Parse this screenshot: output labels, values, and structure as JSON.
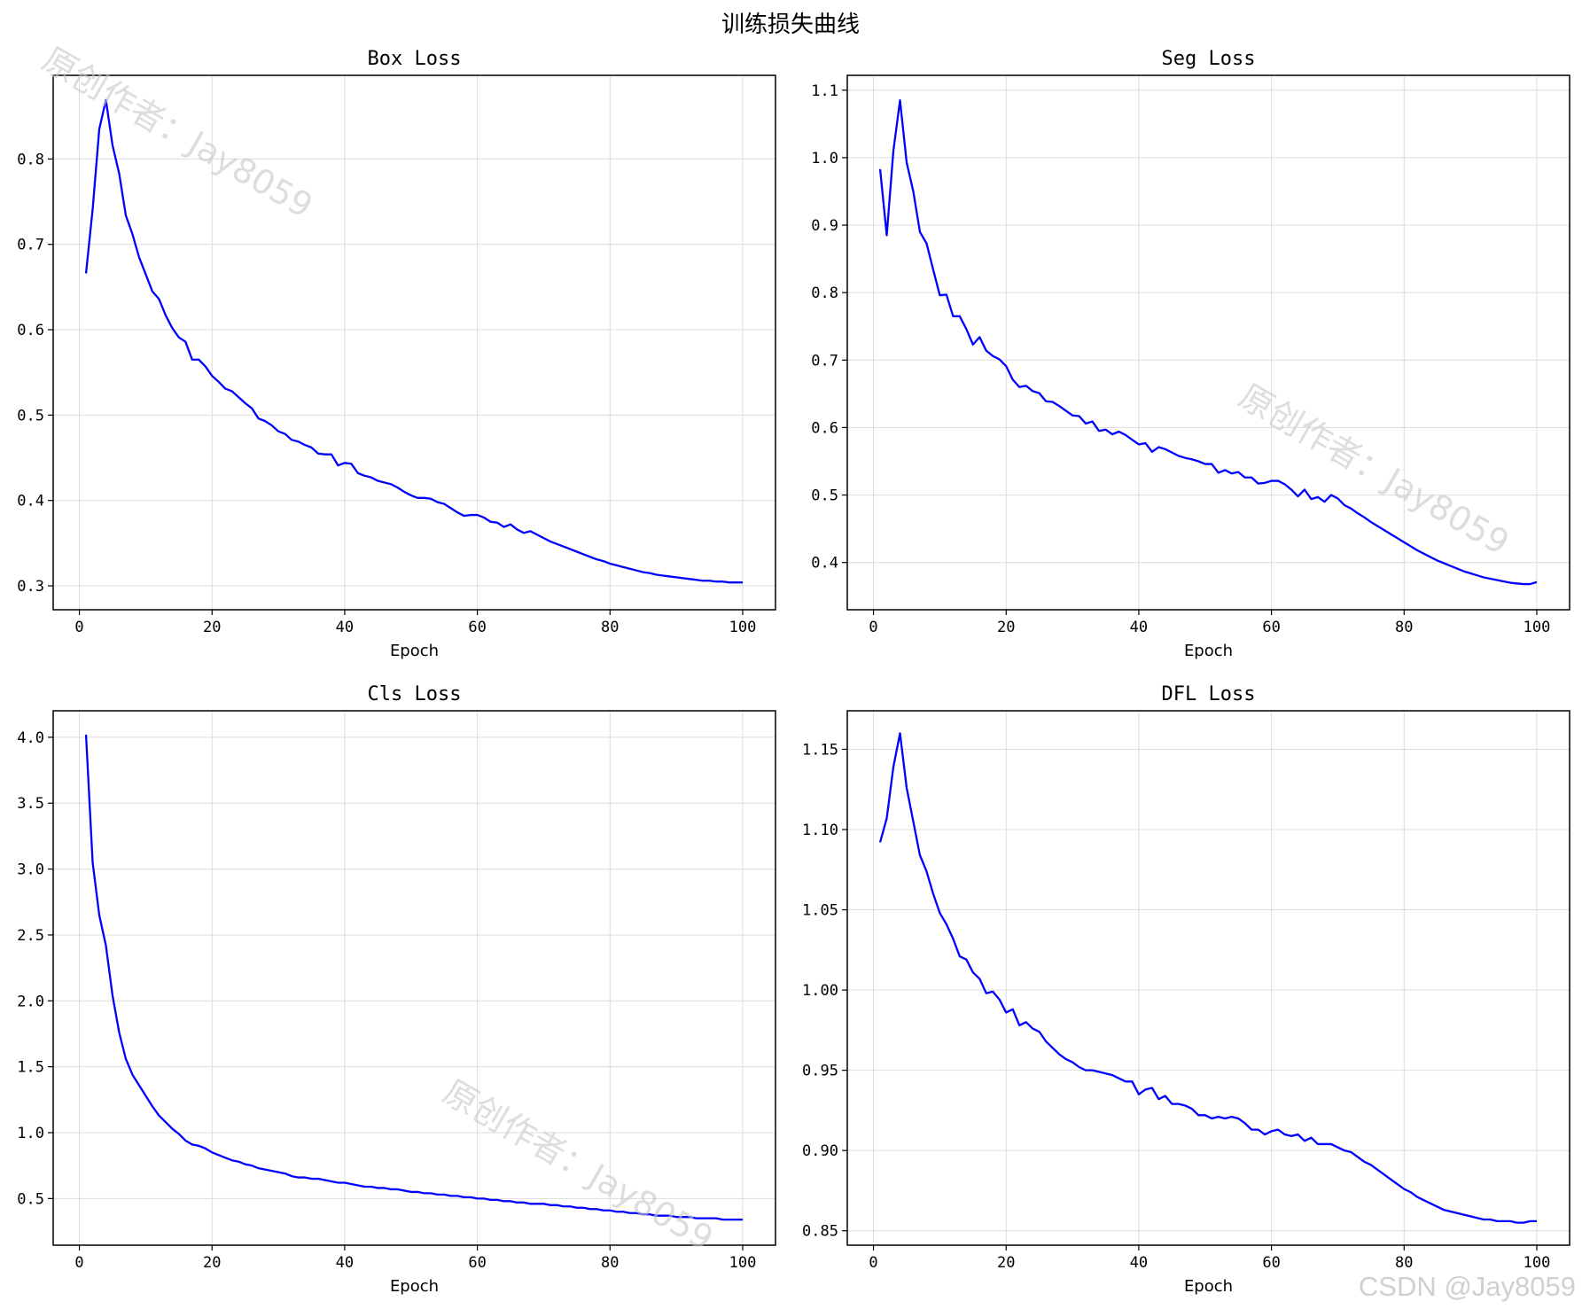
{
  "figure_title": "训练损失曲线",
  "watermarks": [
    "原创作者：Jay8059",
    "原创作者：Jay8059",
    "原创作者：Jay8059"
  ],
  "footer_watermark": "CSDN @Jay8059",
  "line_color": "#0000ff",
  "chart_data": [
    {
      "type": "line",
      "title": "Box Loss",
      "xlabel": "Epoch",
      "ylabel": "",
      "xlim": [
        -3.95,
        104.95
      ],
      "ylim": [
        0.272,
        0.898
      ],
      "xticks": [
        0,
        20,
        40,
        60,
        80,
        100
      ],
      "yticks": [
        0.3,
        0.4,
        0.5,
        0.6,
        0.7,
        0.8
      ],
      "ytick_labels": [
        "0.3",
        "0.4",
        "0.5",
        "0.6",
        "0.7",
        "0.8"
      ],
      "grid": true,
      "x": [
        1,
        2,
        3,
        4,
        5,
        6,
        7,
        8,
        9,
        10,
        11,
        12,
        13,
        14,
        15,
        16,
        17,
        18,
        19,
        20,
        21,
        22,
        23,
        24,
        25,
        26,
        27,
        28,
        29,
        30,
        31,
        32,
        33,
        34,
        35,
        36,
        37,
        38,
        39,
        40,
        41,
        42,
        43,
        44,
        45,
        46,
        47,
        48,
        49,
        50,
        51,
        52,
        53,
        54,
        55,
        56,
        57,
        58,
        59,
        60,
        61,
        62,
        63,
        64,
        65,
        66,
        67,
        68,
        69,
        70,
        71,
        72,
        73,
        74,
        75,
        76,
        77,
        78,
        79,
        80,
        81,
        82,
        83,
        84,
        85,
        86,
        87,
        88,
        89,
        90,
        91,
        92,
        93,
        94,
        95,
        96,
        97,
        98,
        99,
        100
      ],
      "y": [
        0.666,
        0.741,
        0.835,
        0.869,
        0.816,
        0.783,
        0.734,
        0.712,
        0.685,
        0.665,
        0.645,
        0.636,
        0.617,
        0.602,
        0.591,
        0.586,
        0.565,
        0.565,
        0.557,
        0.546,
        0.539,
        0.531,
        0.528,
        0.521,
        0.514,
        0.508,
        0.496,
        0.493,
        0.488,
        0.481,
        0.478,
        0.471,
        0.469,
        0.465,
        0.462,
        0.455,
        0.454,
        0.454,
        0.441,
        0.444,
        0.443,
        0.432,
        0.429,
        0.427,
        0.423,
        0.421,
        0.419,
        0.415,
        0.41,
        0.406,
        0.403,
        0.403,
        0.402,
        0.398,
        0.396,
        0.391,
        0.386,
        0.382,
        0.383,
        0.383,
        0.38,
        0.375,
        0.374,
        0.369,
        0.372,
        0.366,
        0.362,
        0.364,
        0.36,
        0.356,
        0.352,
        0.349,
        0.346,
        0.343,
        0.34,
        0.337,
        0.334,
        0.331,
        0.329,
        0.326,
        0.324,
        0.322,
        0.32,
        0.318,
        0.316,
        0.315,
        0.313,
        0.312,
        0.311,
        0.31,
        0.309,
        0.308,
        0.307,
        0.306,
        0.306,
        0.305,
        0.305,
        0.304,
        0.304,
        0.304
      ]
    },
    {
      "type": "line",
      "title": "Seg Loss",
      "xlabel": "Epoch",
      "ylabel": "",
      "xlim": [
        -3.95,
        104.95
      ],
      "ylim": [
        0.33,
        1.122
      ],
      "xticks": [
        0,
        20,
        40,
        60,
        80,
        100
      ],
      "yticks": [
        0.4,
        0.5,
        0.6,
        0.7,
        0.8,
        0.9,
        1.0,
        1.1
      ],
      "ytick_labels": [
        "0.4",
        "0.5",
        "0.6",
        "0.7",
        "0.8",
        "0.9",
        "1.0",
        "1.1"
      ],
      "grid": true,
      "x": [
        1,
        2,
        3,
        4,
        5,
        6,
        7,
        8,
        9,
        10,
        11,
        12,
        13,
        14,
        15,
        16,
        17,
        18,
        19,
        20,
        21,
        22,
        23,
        24,
        25,
        26,
        27,
        28,
        29,
        30,
        31,
        32,
        33,
        34,
        35,
        36,
        37,
        38,
        39,
        40,
        41,
        42,
        43,
        44,
        45,
        46,
        47,
        48,
        49,
        50,
        51,
        52,
        53,
        54,
        55,
        56,
        57,
        58,
        59,
        60,
        61,
        62,
        63,
        64,
        65,
        66,
        67,
        68,
        69,
        70,
        71,
        72,
        73,
        74,
        75,
        76,
        77,
        78,
        79,
        80,
        81,
        82,
        83,
        84,
        85,
        86,
        87,
        88,
        89,
        90,
        91,
        92,
        93,
        94,
        95,
        96,
        97,
        98,
        99,
        100
      ],
      "y": [
        0.983,
        0.885,
        1.01,
        1.085,
        0.993,
        0.95,
        0.89,
        0.873,
        0.834,
        0.796,
        0.797,
        0.765,
        0.765,
        0.746,
        0.723,
        0.734,
        0.714,
        0.706,
        0.701,
        0.691,
        0.671,
        0.66,
        0.662,
        0.654,
        0.651,
        0.639,
        0.638,
        0.632,
        0.625,
        0.618,
        0.617,
        0.606,
        0.609,
        0.595,
        0.597,
        0.59,
        0.594,
        0.589,
        0.582,
        0.575,
        0.577,
        0.564,
        0.571,
        0.568,
        0.563,
        0.558,
        0.555,
        0.553,
        0.55,
        0.546,
        0.546,
        0.533,
        0.537,
        0.532,
        0.534,
        0.526,
        0.526,
        0.517,
        0.518,
        0.521,
        0.521,
        0.516,
        0.508,
        0.498,
        0.508,
        0.494,
        0.497,
        0.49,
        0.5,
        0.495,
        0.485,
        0.48,
        0.473,
        0.467,
        0.46,
        0.454,
        0.448,
        0.442,
        0.436,
        0.43,
        0.424,
        0.418,
        0.413,
        0.408,
        0.403,
        0.399,
        0.395,
        0.391,
        0.387,
        0.384,
        0.381,
        0.378,
        0.376,
        0.374,
        0.372,
        0.37,
        0.369,
        0.368,
        0.368,
        0.371
      ]
    },
    {
      "type": "line",
      "title": "Cls Loss",
      "xlabel": "Epoch",
      "ylabel": "",
      "xlim": [
        -3.95,
        104.95
      ],
      "ylim": [
        0.146,
        4.201
      ],
      "xticks": [
        0,
        20,
        40,
        60,
        80,
        100
      ],
      "yticks": [
        0.5,
        1.0,
        1.5,
        2.0,
        2.5,
        3.0,
        3.5,
        4.0
      ],
      "ytick_labels": [
        "0.5",
        "1.0",
        "1.5",
        "2.0",
        "2.5",
        "3.0",
        "3.5",
        "4.0"
      ],
      "grid": true,
      "x": [
        1,
        2,
        3,
        4,
        5,
        6,
        7,
        8,
        9,
        10,
        11,
        12,
        13,
        14,
        15,
        16,
        17,
        18,
        19,
        20,
        21,
        22,
        23,
        24,
        25,
        26,
        27,
        28,
        29,
        30,
        31,
        32,
        33,
        34,
        35,
        36,
        37,
        38,
        39,
        40,
        41,
        42,
        43,
        44,
        45,
        46,
        47,
        48,
        49,
        50,
        51,
        52,
        53,
        54,
        55,
        56,
        57,
        58,
        59,
        60,
        61,
        62,
        63,
        64,
        65,
        66,
        67,
        68,
        69,
        70,
        71,
        72,
        73,
        74,
        75,
        76,
        77,
        78,
        79,
        80,
        81,
        82,
        83,
        84,
        85,
        86,
        87,
        88,
        89,
        90,
        91,
        92,
        93,
        94,
        95,
        96,
        97,
        98,
        99,
        100
      ],
      "y": [
        4.02,
        3.05,
        2.65,
        2.42,
        2.04,
        1.76,
        1.56,
        1.44,
        1.36,
        1.28,
        1.2,
        1.13,
        1.08,
        1.03,
        0.99,
        0.94,
        0.91,
        0.9,
        0.88,
        0.85,
        0.83,
        0.81,
        0.79,
        0.78,
        0.76,
        0.75,
        0.73,
        0.72,
        0.71,
        0.7,
        0.69,
        0.67,
        0.66,
        0.66,
        0.65,
        0.65,
        0.64,
        0.63,
        0.62,
        0.62,
        0.61,
        0.6,
        0.59,
        0.59,
        0.58,
        0.58,
        0.57,
        0.57,
        0.56,
        0.55,
        0.55,
        0.54,
        0.54,
        0.53,
        0.53,
        0.52,
        0.52,
        0.51,
        0.51,
        0.5,
        0.5,
        0.49,
        0.49,
        0.48,
        0.48,
        0.47,
        0.47,
        0.46,
        0.46,
        0.46,
        0.45,
        0.45,
        0.44,
        0.44,
        0.43,
        0.43,
        0.42,
        0.42,
        0.41,
        0.41,
        0.4,
        0.4,
        0.39,
        0.39,
        0.38,
        0.38,
        0.37,
        0.37,
        0.37,
        0.36,
        0.36,
        0.36,
        0.35,
        0.35,
        0.35,
        0.35,
        0.34,
        0.34,
        0.34,
        0.34
      ]
    },
    {
      "type": "line",
      "title": "DFL Loss",
      "xlabel": "Epoch",
      "ylabel": "",
      "xlim": [
        -3.95,
        104.95
      ],
      "ylim": [
        0.841,
        1.174
      ],
      "xticks": [
        0,
        20,
        40,
        60,
        80,
        100
      ],
      "yticks": [
        0.85,
        0.9,
        0.95,
        1.0,
        1.05,
        1.1,
        1.15
      ],
      "ytick_labels": [
        "0.85",
        "0.90",
        "0.95",
        "1.00",
        "1.05",
        "1.10",
        "1.15"
      ],
      "grid": true,
      "x": [
        1,
        2,
        3,
        4,
        5,
        6,
        7,
        8,
        9,
        10,
        11,
        12,
        13,
        14,
        15,
        16,
        17,
        18,
        19,
        20,
        21,
        22,
        23,
        24,
        25,
        26,
        27,
        28,
        29,
        30,
        31,
        32,
        33,
        34,
        35,
        36,
        37,
        38,
        39,
        40,
        41,
        42,
        43,
        44,
        45,
        46,
        47,
        48,
        49,
        50,
        51,
        52,
        53,
        54,
        55,
        56,
        57,
        58,
        59,
        60,
        61,
        62,
        63,
        64,
        65,
        66,
        67,
        68,
        69,
        70,
        71,
        72,
        73,
        74,
        75,
        76,
        77,
        78,
        79,
        80,
        81,
        82,
        83,
        84,
        85,
        86,
        87,
        88,
        89,
        90,
        91,
        92,
        93,
        94,
        95,
        96,
        97,
        98,
        99,
        100
      ],
      "y": [
        1.092,
        1.107,
        1.139,
        1.16,
        1.126,
        1.105,
        1.084,
        1.074,
        1.06,
        1.048,
        1.041,
        1.032,
        1.021,
        1.019,
        1.011,
        1.007,
        0.998,
        0.999,
        0.994,
        0.986,
        0.988,
        0.978,
        0.98,
        0.976,
        0.974,
        0.968,
        0.964,
        0.96,
        0.957,
        0.955,
        0.952,
        0.95,
        0.95,
        0.949,
        0.948,
        0.947,
        0.945,
        0.943,
        0.943,
        0.935,
        0.938,
        0.939,
        0.932,
        0.934,
        0.929,
        0.929,
        0.928,
        0.926,
        0.922,
        0.922,
        0.92,
        0.921,
        0.92,
        0.921,
        0.92,
        0.917,
        0.913,
        0.913,
        0.91,
        0.912,
        0.913,
        0.91,
        0.909,
        0.91,
        0.906,
        0.908,
        0.904,
        0.904,
        0.904,
        0.902,
        0.9,
        0.899,
        0.896,
        0.893,
        0.891,
        0.888,
        0.885,
        0.882,
        0.879,
        0.876,
        0.874,
        0.871,
        0.869,
        0.867,
        0.865,
        0.863,
        0.862,
        0.861,
        0.86,
        0.859,
        0.858,
        0.857,
        0.857,
        0.856,
        0.856,
        0.856,
        0.855,
        0.855,
        0.856,
        0.856
      ]
    }
  ]
}
